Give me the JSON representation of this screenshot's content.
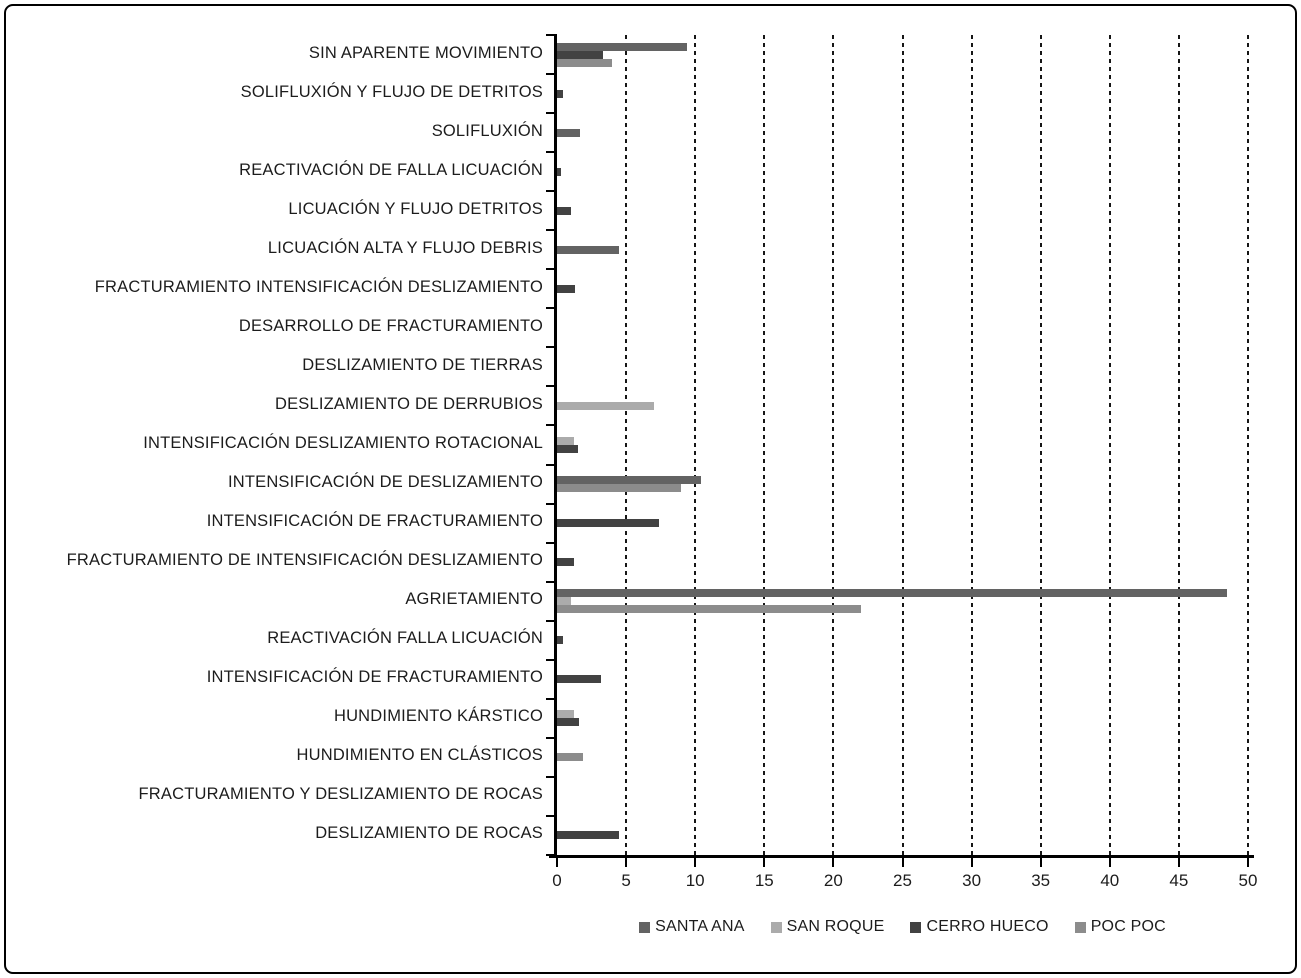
{
  "chart_data": {
    "type": "bar",
    "orientation": "horizontal",
    "title": "",
    "xlabel": "",
    "ylabel": "",
    "xlim": [
      0,
      50
    ],
    "x_tick_step": 5,
    "x_ticks": [
      0,
      5,
      10,
      15,
      20,
      25,
      30,
      35,
      40,
      45,
      50
    ],
    "grid": "vertical-dashed",
    "legend_position": "bottom",
    "categories": [
      "SIN APARENTE MOVIMIENTO",
      "SOLIFLUXIÓN Y FLUJO DE DETRITOS",
      "SOLIFLUXIÓN",
      "REACTIVACIÓN DE FALLA LICUACIÓN",
      "LICUACIÓN Y FLUJO DETRITOS",
      "LICUACIÓN ALTA Y FLUJO DEBRIS",
      "FRACTURAMIENTO INTENSIFICACIÓN DESLIZAMIENTO",
      "DESARROLLO DE FRACTURAMIENTO",
      "DESLIZAMIENTO DE TIERRAS",
      "DESLIZAMIENTO DE DERRUBIOS",
      "INTENSIFICACIÓN DESLIZAMIENTO ROTACIONAL",
      "INTENSIFICACIÓN DE DESLIZAMIENTO",
      "INTENSIFICACIÓN DE FRACTURAMIENTO",
      "FRACTURAMIENTO DE INTENSIFICACIÓN DESLIZAMIENTO",
      "AGRIETAMIENTO",
      "REACTIVACIÓN FALLA LICUACIÓN",
      "INTENSIFICACIÓN DE FRACTURAMIENTO",
      "HUNDIMIENTO KÁRSTICO",
      "HUNDIMIENTO EN CLÁSTICOS",
      "FRACTURAMIENTO Y DESLIZAMIENTO DE ROCAS",
      "DESLIZAMIENTO DE ROCAS"
    ],
    "series": [
      {
        "name": "SANTA ANA",
        "color": "#636363",
        "values": [
          9.4,
          0,
          1.7,
          0,
          0,
          4.5,
          0,
          0,
          0,
          0,
          0,
          10.4,
          0,
          0,
          48.5,
          0,
          0,
          0,
          0,
          0,
          0
        ]
      },
      {
        "name": "SAN ROQUE",
        "color": "#ababab",
        "values": [
          0,
          0,
          0,
          0,
          0,
          0,
          0,
          0,
          0,
          7,
          1.2,
          0,
          0,
          0,
          1,
          0,
          0,
          1.2,
          0,
          0,
          0
        ]
      },
      {
        "name": "CERRO HUECO",
        "color": "#424242",
        "values": [
          3.3,
          0.4,
          0,
          0.3,
          1,
          0,
          1.3,
          0,
          0,
          0,
          1.5,
          0,
          7.4,
          1.2,
          0,
          0.4,
          3.2,
          1.6,
          0,
          0,
          4.5
        ]
      },
      {
        "name": "POC POC",
        "color": "#8c8c8c",
        "values": [
          4.0,
          0,
          0,
          0,
          0,
          0,
          0,
          0,
          0,
          0,
          0,
          9.0,
          0,
          0,
          22,
          0,
          0,
          0,
          1.9,
          0,
          0
        ]
      }
    ]
  },
  "layout_colors": {
    "axis": "#000000",
    "gridline": "#161616",
    "text": "#1c1c1c",
    "frame_border": "#000000",
    "background": "#ffffff"
  }
}
